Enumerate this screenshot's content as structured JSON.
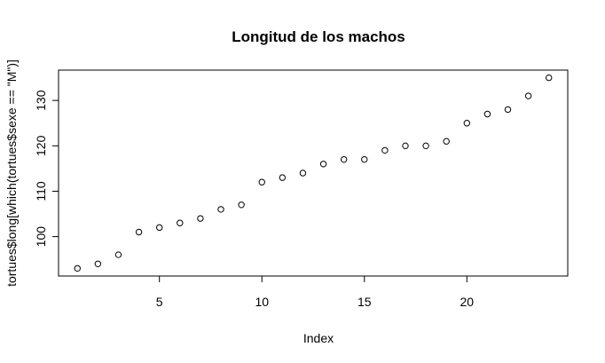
{
  "chart_data": {
    "type": "scatter",
    "title": "Longitud de los machos",
    "xlabel": "Index",
    "ylabel": "tortues$long[which(tortues$sexe == \"M\")]",
    "x": [
      1,
      2,
      3,
      4,
      5,
      6,
      7,
      8,
      9,
      10,
      11,
      12,
      13,
      14,
      15,
      16,
      17,
      18,
      19,
      20,
      21,
      22,
      23,
      24
    ],
    "y": [
      93,
      94,
      96,
      101,
      102,
      103,
      104,
      106,
      107,
      112,
      113,
      114,
      116,
      117,
      117,
      119,
      120,
      120,
      121,
      125,
      127,
      128,
      131,
      135
    ],
    "xlim": [
      0.08,
      24.92
    ],
    "ylim": [
      91.32,
      136.68
    ],
    "x_ticks": [
      5,
      10,
      15,
      20
    ],
    "y_ticks": [
      100,
      110,
      120,
      130
    ],
    "grid": false,
    "legend": "none",
    "marker": "open-circle"
  }
}
